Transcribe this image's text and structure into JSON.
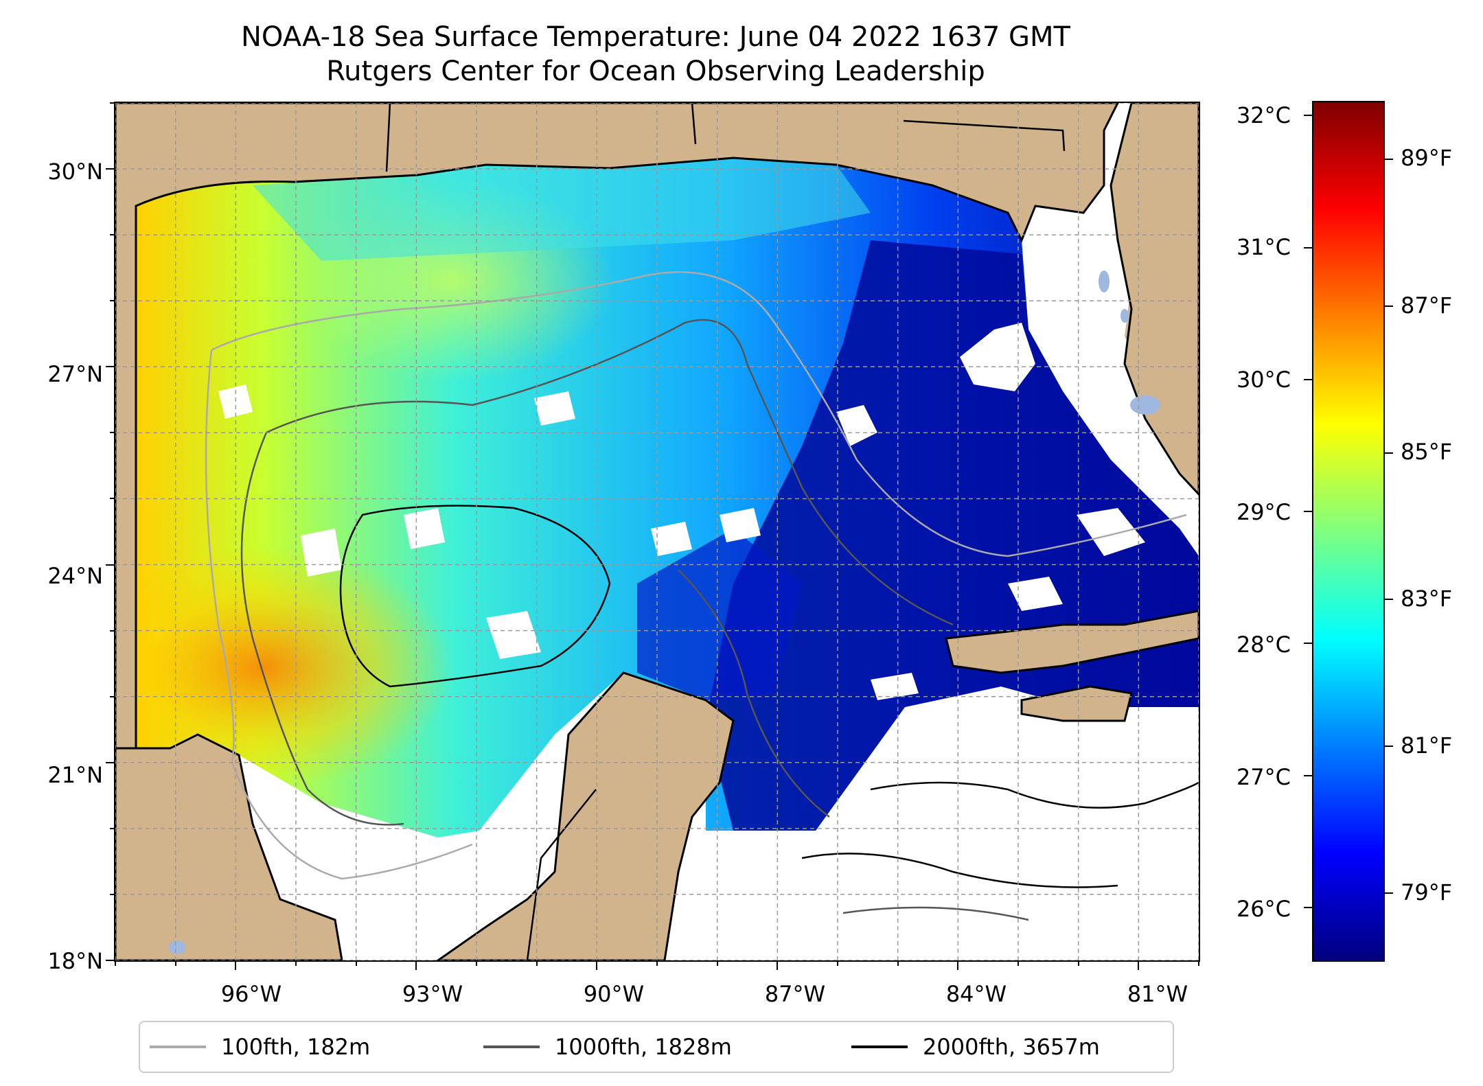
{
  "title_line1": "NOAA-18 Sea Surface Temperature: June 04 2022 1637 GMT",
  "title_line2": "Rutgers Center for Ocean Observing Leadership",
  "map": {
    "type": "sea surface temperature map",
    "lon_range": [
      -98,
      -80
    ],
    "lat_range": [
      18,
      31
    ],
    "lat_ticks": [
      "30°N",
      "27°N",
      "24°N",
      "21°N",
      "18°N"
    ],
    "lon_ticks": [
      "96°W",
      "93°W",
      "90°W",
      "87°W",
      "84°W",
      "81°W"
    ],
    "grid": true,
    "colors": {
      "land": "#d2b48c",
      "no_data": "#ffffff",
      "inland_water": "#9fb8e0",
      "coastline": "#000000"
    }
  },
  "colorbar": {
    "colormap": "jet",
    "celsius_range": [
      25.6,
      32.1
    ],
    "celsius_labels": [
      "32°C",
      "31°C",
      "30°C",
      "29°C",
      "28°C",
      "27°C",
      "26°C"
    ],
    "fahrenheit_labels": [
      "89°F",
      "87°F",
      "85°F",
      "83°F",
      "81°F",
      "79°F"
    ]
  },
  "legend": {
    "placement": "bottom-center",
    "items": [
      {
        "label": "100fth, 182m",
        "color": "#aaaaaa"
      },
      {
        "label": "1000fth, 1828m",
        "color": "#555555"
      },
      {
        "label": "2000fth, 3657m",
        "color": "#000000"
      }
    ]
  }
}
